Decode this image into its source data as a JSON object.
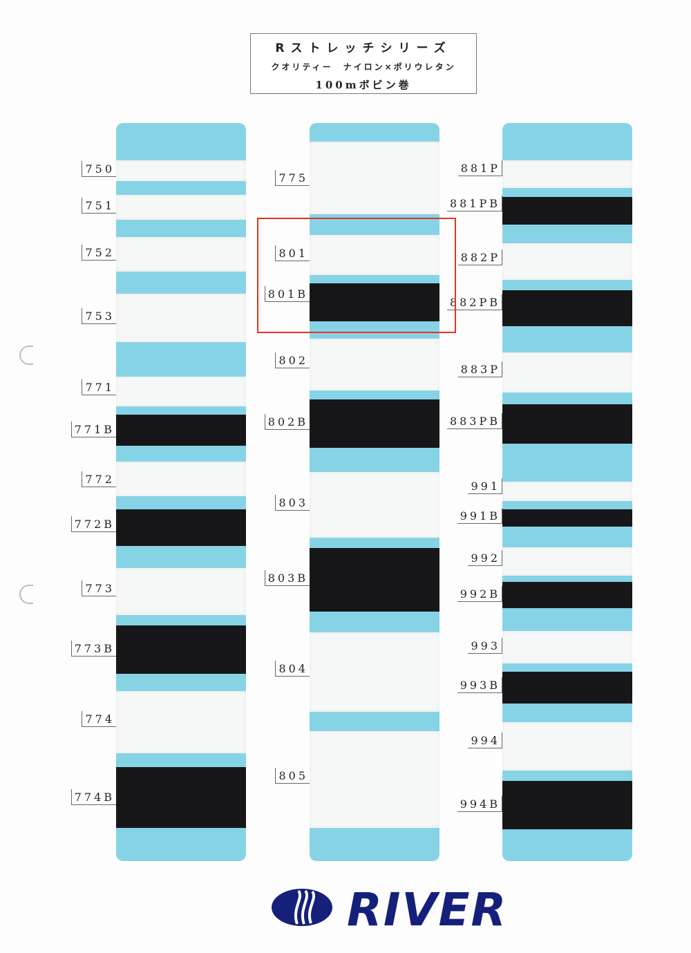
{
  "header": {
    "series": "Rストレッチシリーズ",
    "quality": "クオリティー　ナイロン×ポリウレタン",
    "spool": "100mボビン巻"
  },
  "brand": {
    "name": "RIVER",
    "color": "#15207a"
  },
  "colors": {
    "strip": "#87d3e6",
    "highlight": "#e5321e"
  },
  "columns": [
    {
      "items": [
        {
          "code": "750",
          "color": "white"
        },
        {
          "code": "751",
          "color": "white"
        },
        {
          "code": "752",
          "color": "white"
        },
        {
          "code": "753",
          "color": "white"
        },
        {
          "code": "771",
          "color": "white"
        },
        {
          "code": "771B",
          "color": "black"
        },
        {
          "code": "772",
          "color": "white"
        },
        {
          "code": "772B",
          "color": "black"
        },
        {
          "code": "773",
          "color": "white"
        },
        {
          "code": "773B",
          "color": "black"
        },
        {
          "code": "774",
          "color": "white"
        },
        {
          "code": "774B",
          "color": "black"
        }
      ]
    },
    {
      "items": [
        {
          "code": "775",
          "color": "white"
        },
        {
          "code": "801",
          "color": "white"
        },
        {
          "code": "801B",
          "color": "black"
        },
        {
          "code": "802",
          "color": "white"
        },
        {
          "code": "802B",
          "color": "black"
        },
        {
          "code": "803",
          "color": "white"
        },
        {
          "code": "803B",
          "color": "black"
        },
        {
          "code": "804",
          "color": "white"
        },
        {
          "code": "805",
          "color": "white"
        }
      ]
    },
    {
      "items": [
        {
          "code": "881P",
          "color": "white"
        },
        {
          "code": "881PB",
          "color": "black"
        },
        {
          "code": "882P",
          "color": "white"
        },
        {
          "code": "882PB",
          "color": "black"
        },
        {
          "code": "883P",
          "color": "white"
        },
        {
          "code": "883PB",
          "color": "black"
        },
        {
          "code": "991",
          "color": "white"
        },
        {
          "code": "991B",
          "color": "black"
        },
        {
          "code": "992",
          "color": "white"
        },
        {
          "code": "992B",
          "color": "black"
        },
        {
          "code": "993",
          "color": "white"
        },
        {
          "code": "993B",
          "color": "black"
        },
        {
          "code": "994",
          "color": "white"
        },
        {
          "code": "994B",
          "color": "black"
        }
      ]
    }
  ]
}
